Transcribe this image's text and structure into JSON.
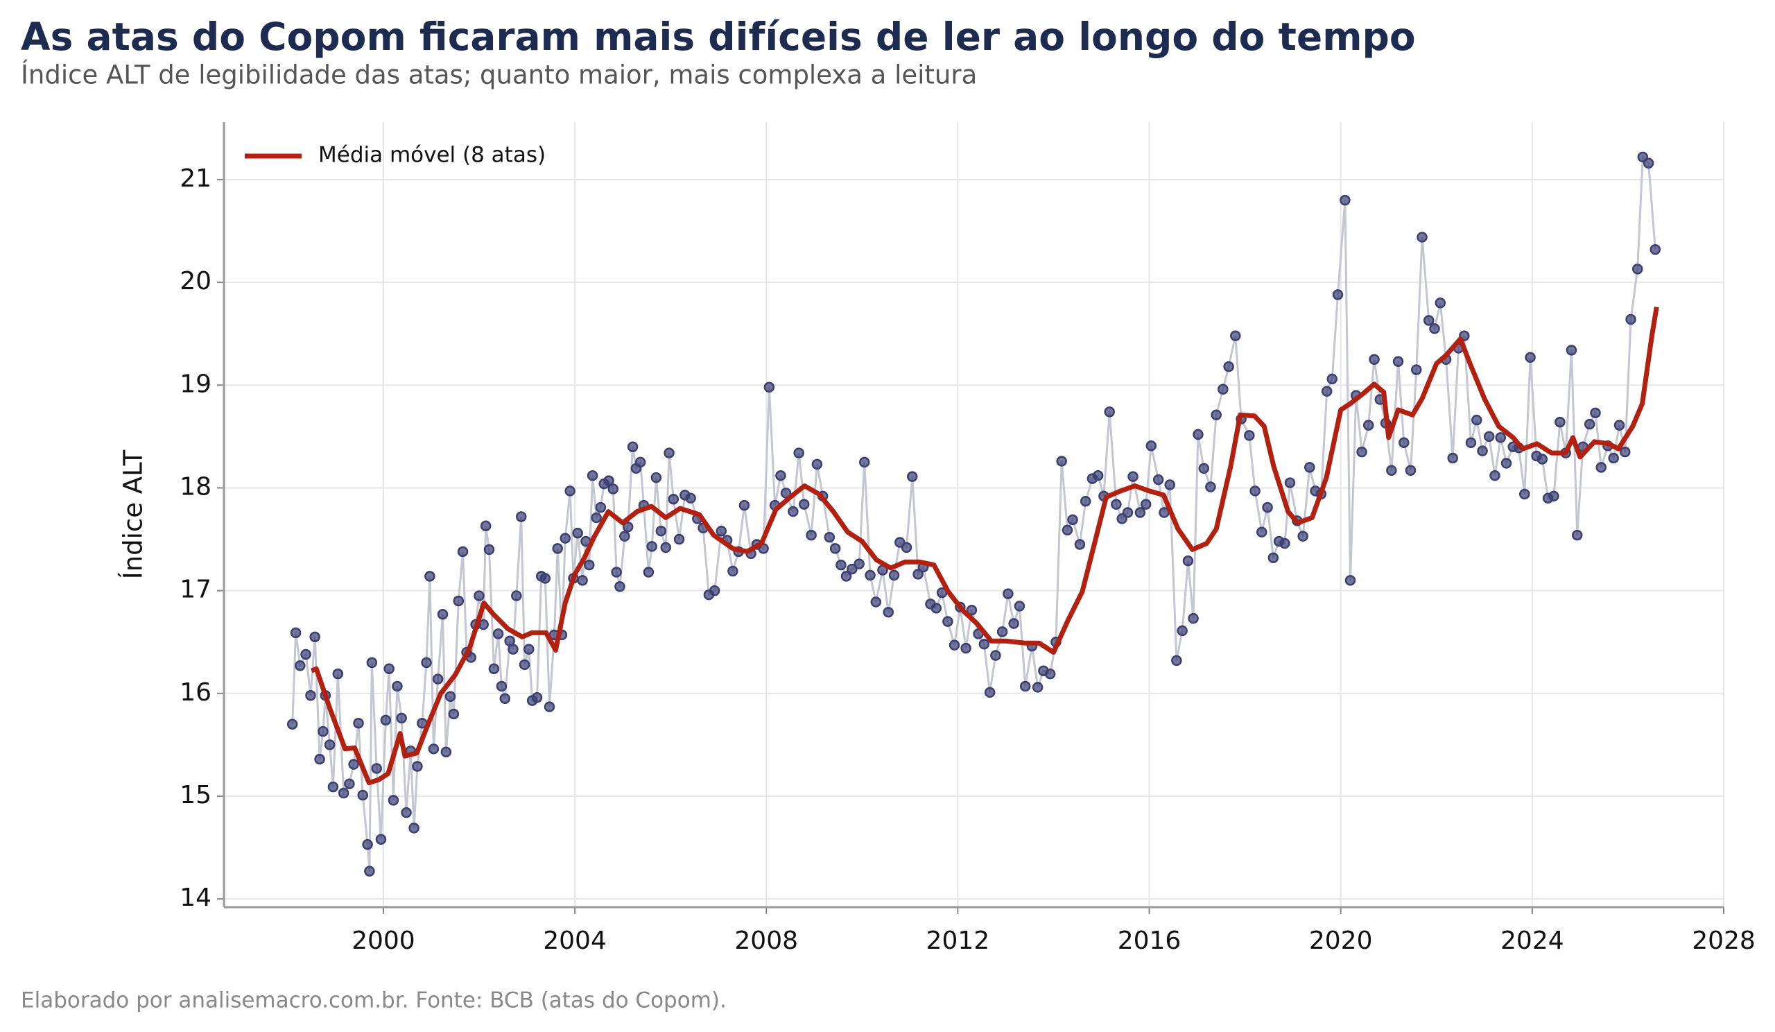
{
  "chart_data": {
    "type": "line",
    "title": "As atas do Copom ficaram mais difíceis de ler ao longo do tempo",
    "subtitle": "Índice ALT de legibilidade das atas; quanto maior, mais complexa a leitura",
    "y_label": "Índice ALT",
    "footer": "Elaborado por analisemacro.com.br. Fonte: BCB (atas do Copom).",
    "xlim": [
      1996.67,
      2028.0
    ],
    "xticks": [
      2000,
      2004,
      2008,
      2012,
      2016,
      2020,
      2024,
      2028
    ],
    "ylim": [
      13.92,
      21.56
    ],
    "yticks": [
      14,
      15,
      16,
      17,
      18,
      19,
      20,
      21
    ],
    "grid": true,
    "legend": "upper left",
    "series": [
      {
        "type": "scatter",
        "color": "#3b3f72",
        "line_color": "#c4c7d2",
        "x": [
          1998.1,
          1998.17,
          1998.26,
          1998.38,
          1998.48,
          1998.57,
          1998.67,
          1998.74,
          1998.79,
          1998.88,
          1998.95,
          1999.05,
          1999.17,
          1999.29,
          1999.38,
          1999.48,
          1999.57,
          1999.67,
          1999.71,
          1999.76,
          1999.86,
          1999.95,
          2000.05,
          2000.12,
          2000.21,
          2000.29,
          2000.38,
          2000.48,
          2000.57,
          2000.64,
          2000.71,
          2000.81,
          2000.9,
          2000.97,
          2001.05,
          2001.14,
          2001.24,
          2001.31,
          2001.4,
          2001.47,
          2001.57,
          2001.66,
          2001.74,
          2001.83,
          2001.93,
          2002.0,
          2002.09,
          2002.14,
          2002.21,
          2002.31,
          2002.4,
          2002.47,
          2002.54,
          2002.64,
          2002.71,
          2002.78,
          2002.88,
          2002.95,
          2003.04,
          2003.11,
          2003.21,
          2003.3,
          2003.38,
          2003.47,
          2003.57,
          2003.64,
          2003.73,
          2003.8,
          2003.9,
          2003.97,
          2004.06,
          2004.16,
          2004.23,
          2004.3,
          2004.37,
          2004.45,
          2004.54,
          2004.61,
          2004.71,
          2004.8,
          2004.87,
          2004.94,
          2005.04,
          2005.11,
          2005.21,
          2005.28,
          2005.37,
          2005.44,
          2005.54,
          2005.61,
          2005.7,
          2005.8,
          2005.9,
          2005.97,
          2006.06,
          2006.18,
          2006.3,
          2006.42,
          2006.56,
          2006.68,
          2006.8,
          2006.92,
          2007.06,
          2007.18,
          2007.3,
          2007.42,
          2007.54,
          2007.68,
          2007.8,
          2007.94,
          2008.06,
          2008.18,
          2008.3,
          2008.41,
          2008.56,
          2008.68,
          2008.79,
          2008.94,
          2009.06,
          2009.18,
          2009.32,
          2009.44,
          2009.56,
          2009.67,
          2009.79,
          2009.94,
          2010.05,
          2010.17,
          2010.29,
          2010.43,
          2010.55,
          2010.67,
          2010.79,
          2010.93,
          2011.05,
          2011.17,
          2011.28,
          2011.43,
          2011.55,
          2011.67,
          2011.79,
          2011.93,
          2012.05,
          2012.17,
          2012.29,
          2012.43,
          2012.55,
          2012.67,
          2012.79,
          2012.93,
          2013.05,
          2013.17,
          2013.29,
          2013.41,
          2013.55,
          2013.67,
          2013.79,
          2013.93,
          2014.05,
          2014.17,
          2014.29,
          2014.4,
          2014.55,
          2014.67,
          2014.81,
          2014.93,
          2015.05,
          2015.17,
          2015.31,
          2015.43,
          2015.55,
          2015.66,
          2015.81,
          2015.93,
          2016.04,
          2016.19,
          2016.31,
          2016.43,
          2016.57,
          2016.69,
          2016.81,
          2016.92,
          2017.02,
          2017.14,
          2017.28,
          2017.4,
          2017.54,
          2017.66,
          2017.8,
          2017.92,
          2018.09,
          2018.21,
          2018.35,
          2018.47,
          2018.59,
          2018.71,
          2018.83,
          2018.94,
          2019.09,
          2019.21,
          2019.35,
          2019.47,
          2019.59,
          2019.71,
          2019.82,
          2019.94,
          2020.09,
          2020.2,
          2020.32,
          2020.44,
          2020.58,
          2020.7,
          2020.82,
          2020.94,
          2021.06,
          2021.2,
          2021.32,
          2021.46,
          2021.58,
          2021.7,
          2021.84,
          2021.96,
          2022.08,
          2022.2,
          2022.34,
          2022.46,
          2022.58,
          2022.72,
          2022.84,
          2022.96,
          2023.1,
          2023.22,
          2023.34,
          2023.46,
          2023.6,
          2023.72,
          2023.84,
          2023.96,
          2024.09,
          2024.21,
          2024.33,
          2024.45,
          2024.58,
          2024.7,
          2024.82,
          2024.94,
          2025.06,
          2025.2,
          2025.32,
          2025.44,
          2025.58,
          2025.7,
          2025.82,
          2025.94,
          2026.06,
          2026.2,
          2026.31,
          2026.43,
          2026.57
        ],
        "values": [
          15.7,
          16.59,
          16.27,
          16.38,
          15.98,
          16.55,
          15.36,
          15.63,
          15.98,
          15.5,
          15.09,
          16.19,
          15.03,
          15.12,
          15.31,
          15.71,
          15.01,
          14.53,
          14.27,
          16.3,
          15.27,
          14.58,
          15.74,
          16.24,
          14.96,
          16.07,
          15.76,
          14.84,
          15.44,
          14.69,
          15.29,
          15.71,
          16.3,
          17.14,
          15.46,
          16.14,
          16.77,
          15.43,
          15.97,
          15.8,
          16.9,
          17.38,
          16.4,
          16.35,
          16.67,
          16.95,
          16.67,
          17.63,
          17.4,
          16.24,
          16.58,
          16.07,
          15.95,
          16.51,
          16.43,
          16.95,
          17.72,
          16.28,
          16.43,
          15.93,
          15.96,
          17.14,
          17.12,
          15.87,
          16.57,
          17.41,
          16.57,
          17.51,
          17.97,
          17.12,
          17.56,
          17.1,
          17.48,
          17.25,
          18.12,
          17.71,
          17.81,
          18.04,
          18.07,
          17.99,
          17.18,
          17.04,
          17.53,
          17.62,
          18.4,
          18.19,
          18.25,
          17.83,
          17.18,
          17.43,
          18.1,
          17.58,
          17.42,
          18.34,
          17.89,
          17.5,
          17.93,
          17.9,
          17.7,
          17.61,
          16.96,
          17.0,
          17.58,
          17.49,
          17.19,
          17.38,
          17.83,
          17.36,
          17.45,
          17.41,
          18.98,
          17.83,
          18.12,
          17.95,
          17.77,
          18.34,
          17.84,
          17.54,
          18.23,
          17.92,
          17.52,
          17.41,
          17.25,
          17.14,
          17.21,
          17.26,
          18.25,
          17.15,
          16.89,
          17.2,
          16.79,
          17.15,
          17.47,
          17.42,
          18.11,
          17.16,
          17.23,
          16.87,
          16.83,
          16.98,
          16.7,
          16.47,
          16.84,
          16.44,
          16.81,
          16.58,
          16.48,
          16.01,
          16.37,
          16.6,
          16.97,
          16.68,
          16.85,
          16.07,
          16.46,
          16.06,
          16.22,
          16.19,
          16.5,
          18.26,
          17.59,
          17.69,
          17.45,
          17.87,
          18.09,
          18.12,
          17.92,
          18.74,
          17.84,
          17.7,
          17.76,
          18.11,
          17.76,
          17.84,
          18.41,
          18.08,
          17.76,
          18.03,
          16.32,
          16.61,
          17.29,
          16.73,
          18.52,
          18.19,
          18.01,
          18.71,
          18.96,
          19.18,
          19.48,
          18.67,
          18.51,
          17.97,
          17.57,
          17.81,
          17.32,
          17.48,
          17.46,
          18.05,
          17.68,
          17.53,
          18.2,
          17.97,
          17.94,
          18.94,
          19.06,
          19.88,
          20.8,
          17.1,
          18.9,
          18.35,
          18.61,
          19.25,
          18.86,
          18.63,
          18.17,
          19.23,
          18.44,
          18.17,
          19.15,
          20.44,
          19.63,
          19.55,
          19.8,
          19.25,
          18.29,
          19.36,
          19.48,
          18.44,
          18.66,
          18.36,
          18.5,
          18.12,
          18.49,
          18.24,
          18.4,
          18.39,
          17.94,
          19.27,
          18.31,
          18.28,
          17.9,
          17.92,
          18.64,
          18.34,
          19.34,
          17.54,
          18.4,
          18.62,
          18.73,
          18.2,
          18.41,
          18.29,
          18.61,
          18.35,
          19.64,
          20.13,
          21.22,
          21.16,
          20.32
        ]
      },
      {
        "type": "line",
        "name": "Média móvel (8 atas)",
        "color": "#b22010",
        "x": [
          1998.5,
          1998.6,
          1998.9,
          1999.2,
          1999.4,
          1999.7,
          1999.9,
          2000.1,
          2000.35,
          2000.45,
          2000.7,
          2000.9,
          2001.2,
          2001.5,
          2001.8,
          2002.1,
          2002.3,
          2002.6,
          2002.9,
          2003.1,
          2003.4,
          2003.6,
          2003.8,
          2004.0,
          2004.2,
          2004.4,
          2004.7,
          2005.0,
          2005.3,
          2005.6,
          2005.9,
          2006.2,
          2006.6,
          2006.9,
          2007.3,
          2007.6,
          2007.9,
          2008.2,
          2008.5,
          2008.8,
          2009.1,
          2009.4,
          2009.7,
          2010.0,
          2010.3,
          2010.6,
          2010.9,
          2011.2,
          2011.5,
          2011.8,
          2012.1,
          2012.4,
          2012.7,
          2013.0,
          2013.4,
          2013.7,
          2014.0,
          2014.3,
          2014.6,
          2014.9,
          2015.1,
          2015.4,
          2015.7,
          2016.0,
          2016.3,
          2016.6,
          2016.9,
          2017.2,
          2017.4,
          2017.7,
          2017.9,
          2018.2,
          2018.4,
          2018.6,
          2018.9,
          2019.1,
          2019.4,
          2019.7,
          2020.0,
          2020.2,
          2020.5,
          2020.7,
          2020.9,
          2021.0,
          2021.2,
          2021.5,
          2021.7,
          2022.0,
          2022.2,
          2022.5,
          2022.7,
          2023.0,
          2023.3,
          2023.6,
          2023.8,
          2024.1,
          2024.4,
          2024.7,
          2024.85,
          2025.0,
          2025.3,
          2025.6,
          2025.8,
          2026.1,
          2026.3,
          2026.5,
          2026.6
        ],
        "values": [
          16.22,
          16.24,
          15.83,
          15.46,
          15.47,
          15.13,
          15.16,
          15.22,
          15.61,
          15.39,
          15.42,
          15.66,
          16.0,
          16.18,
          16.44,
          16.88,
          16.77,
          16.63,
          16.55,
          16.59,
          16.59,
          16.42,
          16.88,
          17.16,
          17.32,
          17.52,
          17.77,
          17.66,
          17.77,
          17.82,
          17.71,
          17.8,
          17.74,
          17.54,
          17.41,
          17.38,
          17.46,
          17.79,
          17.91,
          18.02,
          17.94,
          17.77,
          17.57,
          17.48,
          17.3,
          17.22,
          17.28,
          17.28,
          17.25,
          16.99,
          16.81,
          16.68,
          16.51,
          16.51,
          16.49,
          16.49,
          16.4,
          16.71,
          16.99,
          17.54,
          17.91,
          17.97,
          18.02,
          17.97,
          17.93,
          17.6,
          17.4,
          17.46,
          17.6,
          18.21,
          18.71,
          18.7,
          18.6,
          18.21,
          17.77,
          17.66,
          17.71,
          18.1,
          18.76,
          18.82,
          18.93,
          19.01,
          18.93,
          18.49,
          18.76,
          18.71,
          18.87,
          19.21,
          19.29,
          19.45,
          19.21,
          18.87,
          18.6,
          18.49,
          18.38,
          18.43,
          18.34,
          18.34,
          18.49,
          18.3,
          18.45,
          18.43,
          18.38,
          18.6,
          18.82,
          19.48,
          19.76
        ]
      }
    ]
  }
}
